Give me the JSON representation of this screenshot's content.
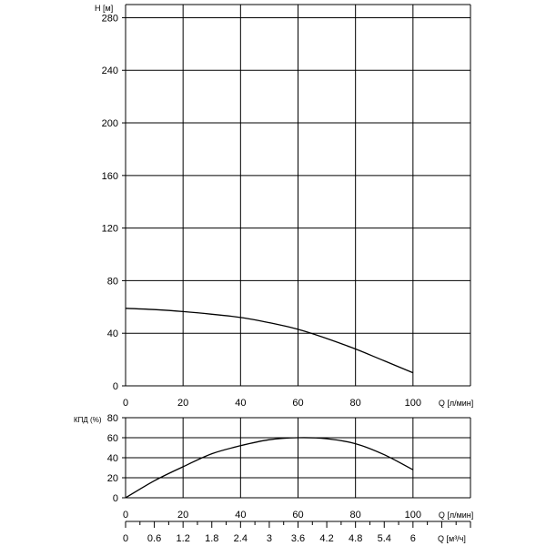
{
  "chart_data": [
    {
      "type": "line",
      "ylabel": "H [м]",
      "xlabel": "Q [л/мин]",
      "xlim": [
        0,
        120
      ],
      "ylim": [
        0,
        290
      ],
      "x_ticks": [
        "0",
        "20",
        "40",
        "60",
        "80",
        "100"
      ],
      "y_ticks": [
        "0",
        "40",
        "80",
        "120",
        "160",
        "200",
        "240",
        "280"
      ],
      "grid": true,
      "series": [
        {
          "x": [
            0,
            10,
            20,
            30,
            40,
            50,
            60,
            70,
            80,
            90,
            100
          ],
          "y": [
            59,
            58,
            56.5,
            54.5,
            52,
            48,
            43,
            36,
            28,
            19,
            10
          ]
        }
      ]
    },
    {
      "type": "line",
      "ylabel": "КПД (%)",
      "xlabel": "Q [л/мин]",
      "xlim": [
        0,
        120
      ],
      "ylim": [
        0,
        80
      ],
      "x_ticks": [
        "0",
        "20",
        "40",
        "60",
        "80",
        "100"
      ],
      "y_ticks": [
        "0",
        "20",
        "40",
        "60",
        "80"
      ],
      "grid": true,
      "series": [
        {
          "x": [
            0,
            10,
            20,
            30,
            40,
            50,
            60,
            70,
            80,
            90,
            100
          ],
          "y": [
            0,
            17,
            31,
            44,
            52,
            58,
            60,
            59,
            54,
            43,
            28
          ]
        }
      ]
    }
  ],
  "secondary_axis": {
    "label": "Q [м³/ч]",
    "xlim": [
      0,
      7.2
    ],
    "ticks": [
      "0",
      "0.6",
      "1.2",
      "1.8",
      "2.4",
      "3",
      "3.6",
      "4.2",
      "4.8",
      "5.4",
      "6"
    ]
  }
}
